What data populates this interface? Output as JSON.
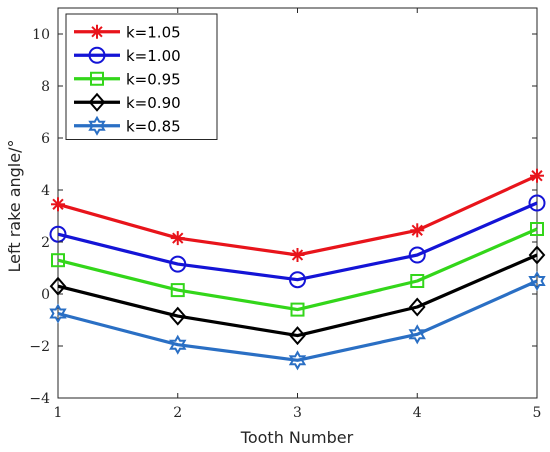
{
  "chart_data": {
    "type": "line",
    "xlabel": "Tooth Number",
    "ylabel": "Left rake angle/°",
    "xlim": [
      1,
      5
    ],
    "ylim": [
      -4,
      11
    ],
    "x_ticks": [
      "1",
      "2",
      "3",
      "4",
      "5"
    ],
    "y_ticks": [
      "−4",
      "−2",
      "0",
      "2",
      "4",
      "6",
      "8",
      "10"
    ],
    "y_tick_values": [
      -4,
      -2,
      0,
      2,
      4,
      6,
      8,
      10
    ],
    "grid": false,
    "legend_position": "top-left",
    "x": [
      1,
      2,
      3,
      4,
      5
    ],
    "series": [
      {
        "name": "k=1.05",
        "color": "#e8141b",
        "marker": "asterisk",
        "values": [
          3.45,
          2.15,
          1.5,
          2.45,
          4.55
        ]
      },
      {
        "name": "k=1.00",
        "color": "#1414d6",
        "marker": "circle",
        "values": [
          2.3,
          1.15,
          0.55,
          1.5,
          3.5
        ]
      },
      {
        "name": "k=0.95",
        "color": "#33d61a",
        "marker": "square",
        "values": [
          1.3,
          0.15,
          -0.6,
          0.5,
          2.5
        ]
      },
      {
        "name": "k=0.90",
        "color": "#000000",
        "marker": "diamond",
        "values": [
          0.3,
          -0.85,
          -1.6,
          -0.5,
          1.5
        ]
      },
      {
        "name": "k=0.85",
        "color": "#2a6fc4",
        "marker": "hexagram",
        "values": [
          -0.75,
          -1.95,
          -2.55,
          -1.55,
          0.5
        ]
      }
    ]
  }
}
